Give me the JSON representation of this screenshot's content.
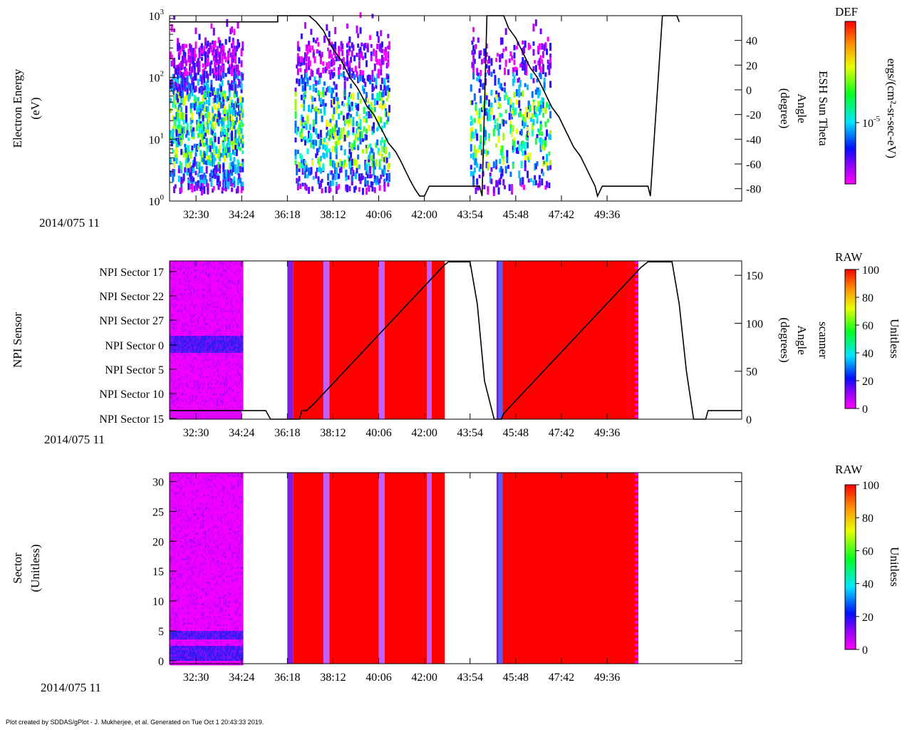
{
  "footer": "Plot created by SDDAS/gPlot - J. Mukherjee, et al.  Generated on Tue Oct 1 20:43:33 2019.",
  "date_label": "2014/075 11",
  "time_ticks": [
    "32:30",
    "34:24",
    "36:18",
    "38:12",
    "40:06",
    "42:00",
    "43:54",
    "45:48",
    "47:42",
    "49:36"
  ],
  "colors": {
    "pink": "#ff00ff",
    "red": "#ff0000",
    "blue": "#2a1ee6",
    "purple": "#8a2be2"
  },
  "chart_data": [
    {
      "type": "heatmap",
      "panel": "electron-energy",
      "ylabel": "Electron Energy",
      "ylabel_unit": "(eV)",
      "yscale": "log",
      "ylim": [
        1,
        1000
      ],
      "y_ticks": [
        {
          "base": "10",
          "exp": "0"
        },
        {
          "base": "10",
          "exp": "1"
        },
        {
          "base": "10",
          "exp": "2"
        },
        {
          "base": "10",
          "exp": "3"
        }
      ],
      "right_axis": {
        "label_line1": "ESH Sun Theta",
        "label_line2": "Angle",
        "label_line3": "(degree)",
        "ylim": [
          -90,
          60
        ],
        "ticks": [
          "40",
          "20",
          "0",
          "-20",
          "-40",
          "-60",
          "-80"
        ]
      },
      "colorbar": {
        "title": "DEF",
        "unit": "ergs/(cm²-sr-sec-eV)",
        "tick_base": "10",
        "tick_exp": "-5"
      },
      "line_series": {
        "name": "ESH Sun Theta",
        "points": [
          [
            31.4,
            55
          ],
          [
            35.9,
            55
          ],
          [
            35.9,
            60
          ],
          [
            37.2,
            60
          ],
          [
            37.5,
            55
          ],
          [
            37.8,
            48
          ],
          [
            38.0,
            40
          ],
          [
            38.2,
            33
          ],
          [
            38.5,
            25
          ],
          [
            38.7,
            18
          ],
          [
            38.9,
            10
          ],
          [
            39.2,
            2
          ],
          [
            39.4,
            -5
          ],
          [
            39.6,
            -13
          ],
          [
            39.9,
            -20
          ],
          [
            40.1,
            -28
          ],
          [
            40.3,
            -35
          ],
          [
            40.5,
            -43
          ],
          [
            40.8,
            -50
          ],
          [
            41.0,
            -57
          ],
          [
            41.2,
            -65
          ],
          [
            41.4,
            -73
          ],
          [
            41.6,
            -80
          ],
          [
            41.8,
            -86
          ],
          [
            42.0,
            -86
          ],
          [
            42.2,
            -78
          ],
          [
            44.3,
            -78
          ],
          [
            44.4,
            -86
          ],
          [
            44.6,
            60
          ],
          [
            45.3,
            60
          ],
          [
            45.5,
            50
          ],
          [
            45.8,
            42
          ],
          [
            46.0,
            34
          ],
          [
            46.2,
            26
          ],
          [
            46.4,
            18
          ],
          [
            46.7,
            10
          ],
          [
            46.9,
            2
          ],
          [
            47.1,
            -6
          ],
          [
            47.3,
            -14
          ],
          [
            47.6,
            -22
          ],
          [
            47.8,
            -30
          ],
          [
            48.0,
            -38
          ],
          [
            48.2,
            -46
          ],
          [
            48.5,
            -54
          ],
          [
            48.7,
            -62
          ],
          [
            48.9,
            -70
          ],
          [
            49.1,
            -78
          ],
          [
            49.2,
            -86
          ],
          [
            49.4,
            -78
          ],
          [
            51.3,
            -78
          ],
          [
            51.4,
            -86
          ],
          [
            51.9,
            60
          ],
          [
            52.5,
            60
          ],
          [
            52.6,
            55
          ]
        ]
      }
    },
    {
      "type": "heatmap",
      "panel": "npi-sensor",
      "ylabel": "NPI Sensor",
      "y_ticks": [
        "NPI Sector 17",
        "NPI Sector 22",
        "NPI Sector 27",
        "NPI Sector 0",
        "NPI Sector 5",
        "NPI Sector 10",
        "NPI Sector 15"
      ],
      "right_axis": {
        "label_line1": "scanner",
        "label_line2": "Angle",
        "label_line3": "(degrees)",
        "ylim": [
          0,
          165
        ],
        "ticks": [
          "150",
          "100",
          "50",
          "0"
        ]
      },
      "colorbar": {
        "title": "RAW",
        "unit": "Unitless",
        "ticks": [
          "100",
          "80",
          "60",
          "40",
          "20",
          "0"
        ]
      },
      "line_series": {
        "name": "scanner Angle",
        "points": [
          [
            31.4,
            9
          ],
          [
            35.4,
            9
          ],
          [
            35.6,
            0
          ],
          [
            36.8,
            0
          ],
          [
            36.9,
            9
          ],
          [
            37.1,
            9
          ],
          [
            37.4,
            16
          ],
          [
            37.7,
            24
          ],
          [
            38.0,
            32
          ],
          [
            38.3,
            40
          ],
          [
            38.6,
            48
          ],
          [
            38.9,
            56
          ],
          [
            39.2,
            64
          ],
          [
            39.5,
            72
          ],
          [
            39.8,
            80
          ],
          [
            40.1,
            88
          ],
          [
            40.4,
            96
          ],
          [
            40.7,
            104
          ],
          [
            41.0,
            112
          ],
          [
            41.3,
            120
          ],
          [
            41.6,
            128
          ],
          [
            41.9,
            136
          ],
          [
            42.2,
            144
          ],
          [
            42.5,
            152
          ],
          [
            42.8,
            160
          ],
          [
            43.0,
            164
          ],
          [
            43.9,
            164
          ],
          [
            44.2,
            120
          ],
          [
            44.5,
            40
          ],
          [
            44.9,
            0
          ],
          [
            45.2,
            0
          ],
          [
            45.3,
            6
          ],
          [
            45.6,
            14
          ],
          [
            45.9,
            22
          ],
          [
            46.2,
            30
          ],
          [
            46.5,
            38
          ],
          [
            46.8,
            46
          ],
          [
            47.1,
            54
          ],
          [
            47.4,
            62
          ],
          [
            47.7,
            70
          ],
          [
            48.0,
            78
          ],
          [
            48.3,
            86
          ],
          [
            48.6,
            94
          ],
          [
            48.9,
            102
          ],
          [
            49.2,
            110
          ],
          [
            49.5,
            118
          ],
          [
            49.8,
            126
          ],
          [
            50.1,
            134
          ],
          [
            50.4,
            142
          ],
          [
            50.7,
            150
          ],
          [
            51.0,
            158
          ],
          [
            51.3,
            164
          ],
          [
            52.3,
            164
          ],
          [
            52.6,
            120
          ],
          [
            52.9,
            50
          ],
          [
            53.2,
            0
          ],
          [
            53.7,
            0
          ],
          [
            53.8,
            9
          ],
          [
            55.2,
            9
          ]
        ]
      }
    },
    {
      "type": "heatmap",
      "panel": "sector",
      "ylabel": "Sector",
      "ylabel_unit": "(Unitless)",
      "ylim": [
        -0.5,
        31.5
      ],
      "y_ticks": [
        "0",
        "5",
        "10",
        "15",
        "20",
        "25",
        "30"
      ],
      "colorbar": {
        "title": "RAW",
        "unit": "Unitless",
        "ticks": [
          "100",
          "80",
          "60",
          "40",
          "20",
          "0"
        ]
      }
    }
  ]
}
